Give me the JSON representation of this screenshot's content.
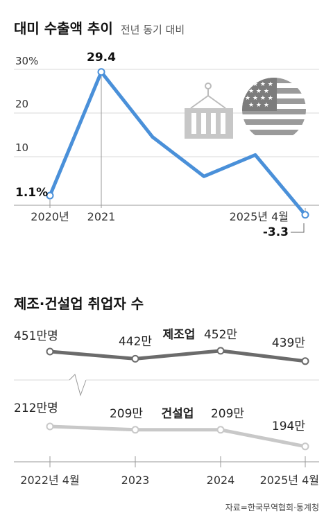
{
  "chart_data": [
    {
      "type": "line",
      "title": "대미 수출액 추이",
      "subtitle": "전년 동기 대비",
      "x": [
        "2020년",
        "2021",
        "",
        "",
        "",
        "2025년 4월"
      ],
      "values": [
        1.1,
        29.4,
        14.5,
        5.5,
        10.4,
        -3.3
      ],
      "point_labels": [
        "1.1%",
        "29.4",
        "",
        "",
        "",
        "-3.3"
      ],
      "yticks": [
        "30%",
        "20",
        "10"
      ],
      "ylim": [
        0,
        30
      ],
      "grid": true,
      "color": "#4a90d9"
    },
    {
      "type": "line",
      "title": "제조·건설업 취업자 수",
      "categories": [
        "2022년 4월",
        "2023",
        "2024",
        "2025년 4월"
      ],
      "series": [
        {
          "name": "제조업",
          "values": [
            451,
            442,
            452,
            439
          ],
          "labels": [
            "451만명",
            "442만",
            "452만",
            "439만"
          ],
          "color": "#6b6b6b"
        },
        {
          "name": "건설업",
          "values": [
            212,
            209,
            209,
            194
          ],
          "labels": [
            "212만명",
            "209만",
            "209만",
            "194만"
          ],
          "color": "#c8c8c8"
        }
      ],
      "grid": true
    }
  ],
  "source": "자료=한국무역협회·통계청"
}
